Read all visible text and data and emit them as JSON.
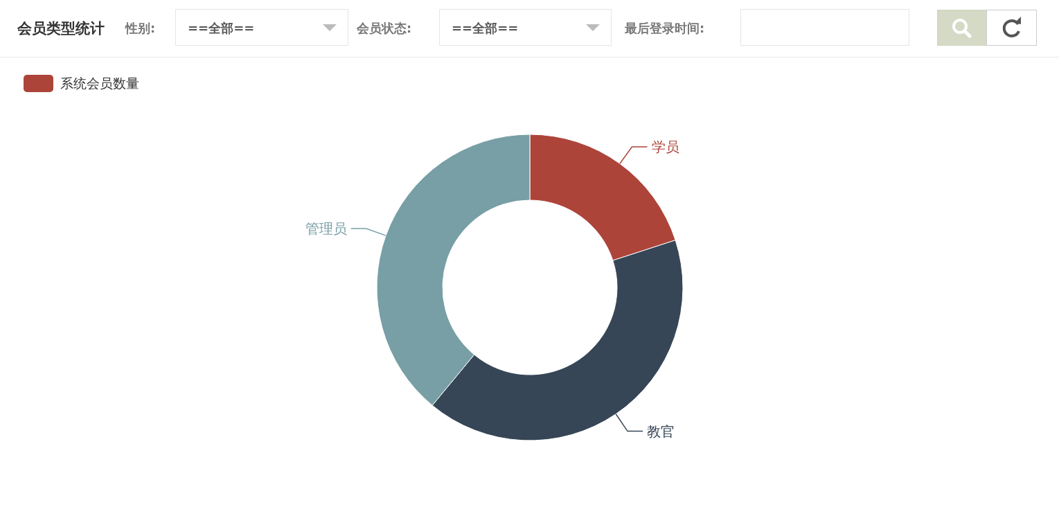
{
  "chart_data": {
    "type": "donut",
    "title": "会员类型统计",
    "annotations": [
      "性别:",
      "==全部==",
      "会员状态:",
      "==全部==",
      "最后登录时间:"
    ],
    "legend_title": "系统会员数量",
    "categories": [
      "学员",
      "教官",
      "管理员"
    ],
    "values": [
      20,
      41,
      39
    ],
    "colors": [
      "#ac443a",
      "#364656",
      "#779fa5"
    ]
  }
}
